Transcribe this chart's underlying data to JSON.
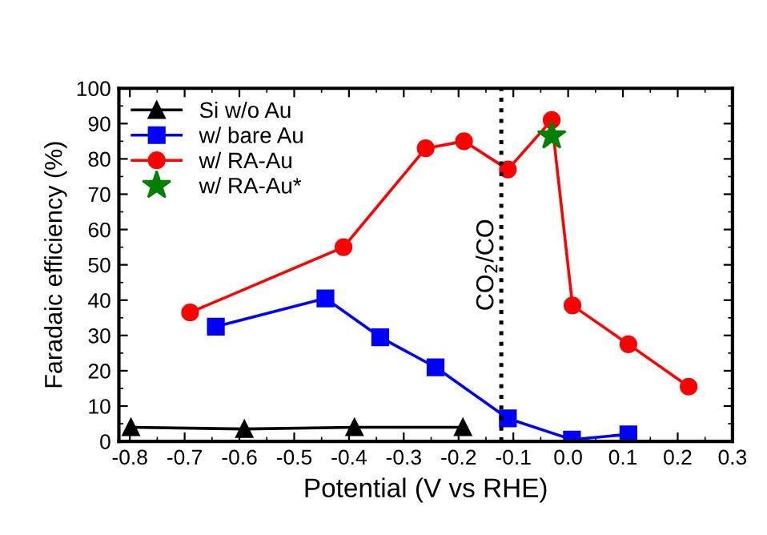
{
  "chart_data": {
    "type": "line",
    "xlabel": "Potential (V vs RHE)",
    "ylabel": "Faradaic efficiency (%)",
    "xlim": [
      -0.82,
      0.3
    ],
    "xticks": [
      {
        "value": -0.8,
        "label": "-0.8"
      },
      {
        "value": -0.7,
        "label": "-0.7"
      },
      {
        "value": -0.6,
        "label": "-0.6"
      },
      {
        "value": -0.5,
        "label": "-0.5"
      },
      {
        "value": -0.4,
        "label": "-0.4"
      },
      {
        "value": -0.3,
        "label": "-0.3"
      },
      {
        "value": -0.2,
        "label": "-0.2"
      },
      {
        "value": -0.1,
        "label": "-0.1"
      },
      {
        "value": 0.0,
        "label": "0.0"
      },
      {
        "value": 0.1,
        "label": "0.1"
      },
      {
        "value": 0.2,
        "label": "0.2"
      },
      {
        "value": 0.3,
        "label": "0.3"
      }
    ],
    "ylim": [
      0,
      100
    ],
    "yticks": [
      0,
      10,
      20,
      30,
      40,
      50,
      60,
      70,
      80,
      90,
      100
    ],
    "grid": false,
    "legend": "top left",
    "series": [
      {
        "name": "Si w/o Au",
        "color": "#000000",
        "marker": "triangle",
        "x": [
          -0.798,
          -0.591,
          -0.39,
          -0.192
        ],
        "values": [
          4,
          3.5,
          4,
          4
        ]
      },
      {
        "name": "w/ bare Au",
        "color": "#0000ff",
        "marker": "square",
        "x": [
          -0.643,
          -0.443,
          -0.343,
          -0.242,
          -0.11,
          0.007,
          0.11
        ],
        "values": [
          32.5,
          40.5,
          29.5,
          21,
          6.5,
          0.5,
          2
        ]
      },
      {
        "name": "w/ RA-Au",
        "color": "#ff0000",
        "marker": "circle",
        "x": [
          -0.69,
          -0.41,
          -0.26,
          -0.19,
          -0.11,
          -0.03,
          0.008,
          0.11,
          0.22
        ],
        "values": [
          36.5,
          55,
          83,
          85,
          77,
          91,
          38.5,
          27.5,
          15.5
        ]
      },
      {
        "name": "w/ RA-Au*",
        "color": "#008000",
        "type": "scatter",
        "marker": "star",
        "x": [
          -0.03
        ],
        "values": [
          86.5
        ]
      }
    ],
    "ref_lines": [
      {
        "axis": "x",
        "value": -0.122,
        "label": "CO$_{2}$/CO",
        "color": "#000000",
        "line_style": "dotted"
      }
    ]
  }
}
